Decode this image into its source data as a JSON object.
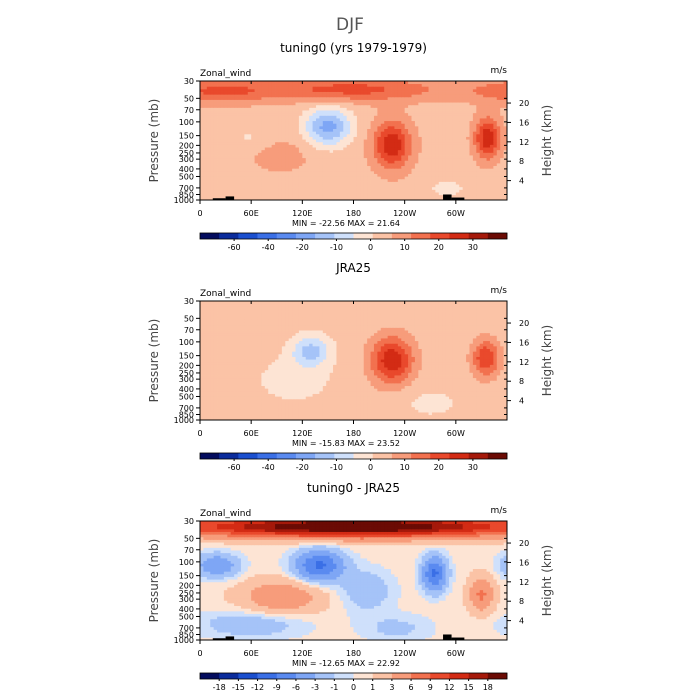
{
  "figure": {
    "title": "DJF"
  },
  "chart_data": [
    {
      "type": "heatmap",
      "title": "tuning0 (yrs 1979-1979)",
      "field": "Zonal_wind",
      "units": "m/s",
      "ylabel": "Pressure (mb)",
      "ylabel_right": "Height (km)",
      "x_ticks": [
        "0",
        "60E",
        "120E",
        "180",
        "120W",
        "60W"
      ],
      "x_tick_values": [
        0,
        60,
        120,
        180,
        240,
        300
      ],
      "xlim": [
        0,
        360
      ],
      "y_ticks": [
        "30",
        "50",
        "70",
        "100",
        "150",
        "200",
        "250",
        "300",
        "400",
        "500",
        "700",
        "850",
        "1000"
      ],
      "y_tick_values": [
        30,
        50,
        70,
        100,
        150,
        200,
        250,
        300,
        400,
        500,
        700,
        850,
        1000
      ],
      "y_scale": "log",
      "ylim": [
        1000,
        30
      ],
      "height_ticks": [
        "4",
        "8",
        "12",
        "16",
        "20"
      ],
      "height_tick_values": [
        4,
        8,
        12,
        16,
        20
      ],
      "stats": "MIN = -22.56   MAX =  21.64",
      "colorbar_labels": [
        "-60",
        "-40",
        "-20",
        "-10",
        "0",
        "10",
        "20",
        "30"
      ],
      "colorbar_levels": [
        -70,
        -60,
        -50,
        -40,
        -30,
        -20,
        -15,
        -10,
        -5,
        0,
        5,
        10,
        15,
        20,
        25,
        30
      ],
      "features": [
        {
          "type": "jet",
          "x": 150,
          "p": 115,
          "value": -20,
          "rx": 27,
          "rp": 0.55
        },
        {
          "type": "jet",
          "x": 225,
          "p": 195,
          "value": 21,
          "rx": 22,
          "rp": 0.7
        },
        {
          "type": "jet",
          "x": 337,
          "p": 160,
          "value": 21,
          "rx": 15,
          "rp": 0.6
        },
        {
          "type": "jet",
          "x": 175,
          "p": 38,
          "value": 14,
          "rx": 110,
          "rp": 0.35
        },
        {
          "type": "jet",
          "x": 20,
          "p": 40,
          "value": 12,
          "rx": 60,
          "rp": 0.35
        },
        {
          "type": "jet",
          "x": 95,
          "p": 260,
          "value": 4,
          "rx": 40,
          "rp": 0.6
        },
        {
          "type": "jet",
          "x": 290,
          "p": 700,
          "value": -4,
          "rx": 30,
          "rp": 0.35
        },
        {
          "type": "jet",
          "x": 60,
          "p": 160,
          "value": -4,
          "rx": 25,
          "rp": 0.35
        }
      ],
      "background": 3,
      "topography": [
        [
          15,
          30,
          950
        ],
        [
          30,
          40,
          900
        ],
        [
          285,
          295,
          850
        ],
        [
          295,
          310,
          930
        ]
      ]
    },
    {
      "type": "heatmap",
      "title": "JRA25",
      "field": "Zonal_wind",
      "units": "m/s",
      "ylabel": "Pressure (mb)",
      "ylabel_right": "Height (km)",
      "x_ticks": [
        "0",
        "60E",
        "120E",
        "180",
        "120W",
        "60W"
      ],
      "x_tick_values": [
        0,
        60,
        120,
        180,
        240,
        300
      ],
      "xlim": [
        0,
        360
      ],
      "y_ticks": [
        "30",
        "50",
        "70",
        "100",
        "150",
        "200",
        "250",
        "300",
        "400",
        "500",
        "700",
        "850",
        "1000"
      ],
      "y_tick_values": [
        30,
        50,
        70,
        100,
        150,
        200,
        250,
        300,
        400,
        500,
        700,
        850,
        1000
      ],
      "y_scale": "log",
      "ylim": [
        1000,
        30
      ],
      "height_ticks": [
        "4",
        "8",
        "12",
        "16",
        "20"
      ],
      "height_tick_values": [
        4,
        8,
        12,
        16,
        20
      ],
      "stats": "MIN = -15.83   MAX =  23.52",
      "colorbar_labels": [
        "-60",
        "-40",
        "-20",
        "-10",
        "0",
        "10",
        "20",
        "30"
      ],
      "colorbar_levels": [
        -70,
        -60,
        -50,
        -40,
        -30,
        -20,
        -15,
        -10,
        -5,
        0,
        5,
        10,
        15,
        20,
        25,
        30
      ],
      "features": [
        {
          "type": "jet",
          "x": 130,
          "p": 130,
          "value": -14,
          "rx": 22,
          "rp": 0.45
        },
        {
          "type": "jet",
          "x": 225,
          "p": 170,
          "value": 22,
          "rx": 25,
          "rp": 0.7
        },
        {
          "type": "jet",
          "x": 335,
          "p": 160,
          "value": 18,
          "rx": 16,
          "rp": 0.55
        },
        {
          "type": "jet",
          "x": 110,
          "p": 300,
          "value": -4,
          "rx": 45,
          "rp": 0.7
        },
        {
          "type": "jet",
          "x": 270,
          "p": 600,
          "value": -3,
          "rx": 40,
          "rp": 0.5
        }
      ],
      "background": 2,
      "topography": []
    },
    {
      "type": "heatmap",
      "title": "tuning0 - JRA25",
      "field": "Zonal_wind",
      "units": "m/s",
      "ylabel": "Pressure (mb)",
      "ylabel_right": "Height (km)",
      "x_ticks": [
        "0",
        "60E",
        "120E",
        "180",
        "120W",
        "60W"
      ],
      "x_tick_values": [
        0,
        60,
        120,
        180,
        240,
        300
      ],
      "xlim": [
        0,
        360
      ],
      "y_ticks": [
        "30",
        "50",
        "70",
        "100",
        "150",
        "200",
        "250",
        "300",
        "400",
        "500",
        "700",
        "850",
        "1000"
      ],
      "y_tick_values": [
        30,
        50,
        70,
        100,
        150,
        200,
        250,
        300,
        400,
        500,
        700,
        850,
        1000
      ],
      "y_scale": "log",
      "ylim": [
        1000,
        30
      ],
      "height_ticks": [
        "4",
        "8",
        "12",
        "16",
        "20"
      ],
      "height_tick_values": [
        4,
        8,
        12,
        16,
        20
      ],
      "stats": "MIN = -12.65   MAX =  22.92",
      "colorbar_labels": [
        "-18",
        "-15",
        "-12",
        "-9",
        "-6",
        "-3",
        "-1",
        "0",
        "1",
        "3",
        "6",
        "9",
        "12",
        "15",
        "18"
      ],
      "colorbar_levels": [
        -21,
        -18,
        -15,
        -12,
        -9,
        -6,
        -3,
        -1,
        0,
        1,
        3,
        6,
        9,
        12,
        15,
        18
      ],
      "features": [
        {
          "type": "jet",
          "x": 180,
          "p": 35,
          "value": 22,
          "rx": 200,
          "rp": 0.3
        },
        {
          "type": "jet",
          "x": 140,
          "p": 110,
          "value": -10,
          "rx": 28,
          "rp": 0.45
        },
        {
          "type": "jet",
          "x": 275,
          "p": 140,
          "value": -10,
          "rx": 14,
          "rp": 0.5
        },
        {
          "type": "jet",
          "x": 20,
          "p": 110,
          "value": -6,
          "rx": 25,
          "rp": 0.35
        },
        {
          "type": "jet",
          "x": 95,
          "p": 280,
          "value": 5,
          "rx": 45,
          "rp": 0.5
        },
        {
          "type": "jet",
          "x": 330,
          "p": 260,
          "value": 6,
          "rx": 14,
          "rp": 0.5
        },
        {
          "type": "jet",
          "x": 195,
          "p": 230,
          "value": -3,
          "rx": 30,
          "rp": 0.6
        },
        {
          "type": "jet",
          "x": 60,
          "p": 620,
          "value": -3,
          "rx": 60,
          "rp": 0.4
        },
        {
          "type": "jet",
          "x": 230,
          "p": 700,
          "value": -2,
          "rx": 40,
          "rp": 0.4
        }
      ],
      "background": 0.5,
      "topography": [
        [
          15,
          30,
          950
        ],
        [
          30,
          40,
          900
        ],
        [
          285,
          295,
          850
        ],
        [
          295,
          310,
          930
        ]
      ]
    }
  ],
  "colors": {
    "palette": [
      "#040c5e",
      "#0b2c9c",
      "#1a4fcf",
      "#3a6fe6",
      "#5a8af0",
      "#7ea6f5",
      "#a5c3f8",
      "#cfe0fb",
      "#fde4d4",
      "#fbc3a6",
      "#f79c7b",
      "#f2714f",
      "#e9492c",
      "#d32b14",
      "#a5190a",
      "#6b0b04"
    ],
    "axis": "#000000",
    "topography": "#000000"
  }
}
